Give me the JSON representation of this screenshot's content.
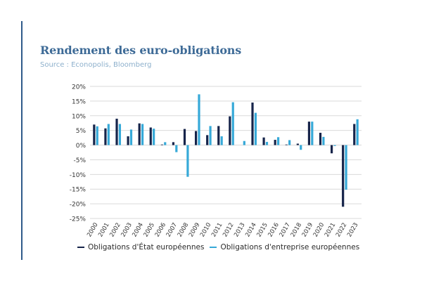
{
  "header": {
    "title": "Rendement des euro-obligations",
    "source": "Source : Econopolis, Bloomberg"
  },
  "colors": {
    "accent": "#2f5a8a",
    "series_state": "#16244a",
    "series_corporate": "#36a9d8"
  },
  "legend": {
    "state_label": "Obligations d'État européennes",
    "corporate_label": "Obligations d'entreprise européennes"
  },
  "chart_data": {
    "type": "bar",
    "categories": [
      "2000",
      "2001",
      "2002",
      "2003",
      "2004",
      "2005",
      "2006",
      "2007",
      "2008",
      "2009",
      "2010",
      "2011",
      "2012",
      "2013",
      "2014",
      "2015",
      "2016",
      "2017",
      "2018",
      "2019",
      "2020",
      "2021",
      "2022",
      "2023"
    ],
    "series": [
      {
        "name": "Obligations d'État européennes",
        "values": [
          7.0,
          5.7,
          9.0,
          3.0,
          7.4,
          6.0,
          0.2,
          1.0,
          5.5,
          4.8,
          3.4,
          6.5,
          9.8,
          0.0,
          14.5,
          2.6,
          1.8,
          0.2,
          0.5,
          8.0,
          4.2,
          -2.8,
          -21.0,
          7.2
        ]
      },
      {
        "name": "Obligations d'entreprise européennes",
        "values": [
          6.4,
          7.2,
          7.2,
          5.3,
          7.2,
          5.6,
          1.0,
          -2.4,
          -10.8,
          17.3,
          6.5,
          3.0,
          14.6,
          1.4,
          11.0,
          1.1,
          2.7,
          1.7,
          -1.6,
          8.0,
          2.8,
          -0.3,
          -15.2,
          8.8
        ]
      }
    ],
    "ylim": [
      -25,
      20
    ],
    "yticks": [
      -25,
      -20,
      -15,
      -10,
      -5,
      0,
      5,
      10,
      15,
      20
    ],
    "ytick_suffix": "%",
    "grid": true,
    "legend_position": "bottom"
  }
}
